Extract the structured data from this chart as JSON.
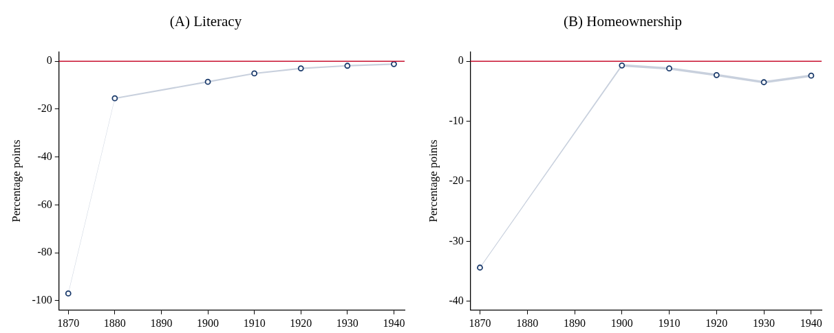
{
  "chart_data": [
    {
      "type": "scatter",
      "title": "(A) Literacy",
      "ylabel": "Percentage points",
      "x": [
        1870,
        1880,
        1900,
        1910,
        1920,
        1930,
        1940
      ],
      "series": [
        {
          "color": "#1a3a6b",
          "values": [
            -97,
            -15.5,
            -8.6,
            -5.1,
            -3,
            -1.9,
            -1.2
          ],
          "lower": [
            -97.3,
            -15.8,
            -8.9,
            -5.4,
            -3.3,
            -2.2,
            -1.5
          ],
          "upper": [
            -96.7,
            -15.2,
            -8.3,
            -4.8,
            -2.7,
            -1.6,
            -0.9
          ]
        }
      ],
      "xlim": [
        1868,
        1942.3
      ],
      "xticks": [
        1870,
        1880,
        1890,
        1900,
        1910,
        1920,
        1930,
        1940
      ],
      "ylim": [
        -104,
        4
      ],
      "yticks": [
        -100,
        -80,
        -60,
        -40,
        -20,
        0
      ],
      "ref_lines": [
        {
          "axis": "y",
          "value": 0,
          "color": "#c8102e"
        }
      ],
      "grid": false,
      "legend": false,
      "marker": "circle"
    },
    {
      "type": "scatter",
      "title": "(B) Homeownership",
      "ylabel": "Percentage points",
      "x": [
        1870,
        1900,
        1910,
        1920,
        1930,
        1940
      ],
      "series": [
        {
          "color": "#1a3a6b",
          "values": [
            -34.4,
            -0.7,
            -1.2,
            -2.3,
            -3.5,
            -2.4
          ],
          "lower": [
            -34.5,
            -0.9,
            -1.4,
            -2.5,
            -3.7,
            -2.6
          ],
          "upper": [
            -34.3,
            -0.5,
            -1.0,
            -2.1,
            -3.3,
            -2.2
          ]
        }
      ],
      "xlim": [
        1868,
        1942.2
      ],
      "xticks": [
        1870,
        1880,
        1890,
        1900,
        1910,
        1920,
        1930,
        1940
      ],
      "ylim": [
        -41.5,
        1.6
      ],
      "yticks": [
        -40,
        -30,
        -20,
        -10,
        0
      ],
      "ref_lines": [
        {
          "axis": "y",
          "value": 0,
          "color": "#c8102e"
        }
      ],
      "grid": false,
      "legend": false,
      "marker": "circle"
    }
  ]
}
